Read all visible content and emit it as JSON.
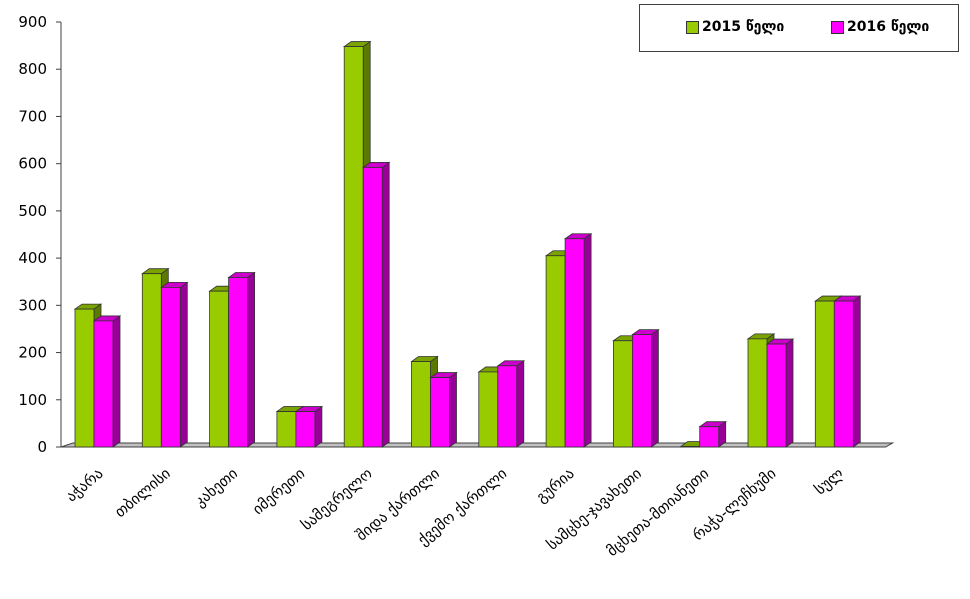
{
  "chart_data": {
    "type": "bar",
    "title": "",
    "xlabel": "",
    "ylabel": "",
    "ylim": [
      0,
      900
    ],
    "yticks": [
      0,
      100,
      200,
      300,
      400,
      500,
      600,
      700,
      800,
      900
    ],
    "categories": [
      "აჭარა",
      "თბილისი",
      "კახეთი",
      "იმერეთი",
      "სამეგრელო",
      "შიდა ქართლი",
      "ქვემო ქართლი",
      "გურია",
      "სამცხე-ჯავახეთი",
      "მცხეთა-მთიანეთი",
      "რაჭა-ლეჩხუმი",
      "სულ"
    ],
    "series": [
      {
        "name": "2015 წელი",
        "color": "#99cc00",
        "values": [
          292,
          367,
          330,
          75,
          848,
          181,
          159,
          405,
          225,
          1,
          229,
          309
        ]
      },
      {
        "name": "2016 წელი",
        "color": "#ff00ff",
        "values": [
          267,
          338,
          359,
          75,
          592,
          147,
          172,
          441,
          238,
          43,
          218,
          309
        ]
      }
    ],
    "grid": false,
    "legend_position": "top-right",
    "style": "3d-column"
  }
}
